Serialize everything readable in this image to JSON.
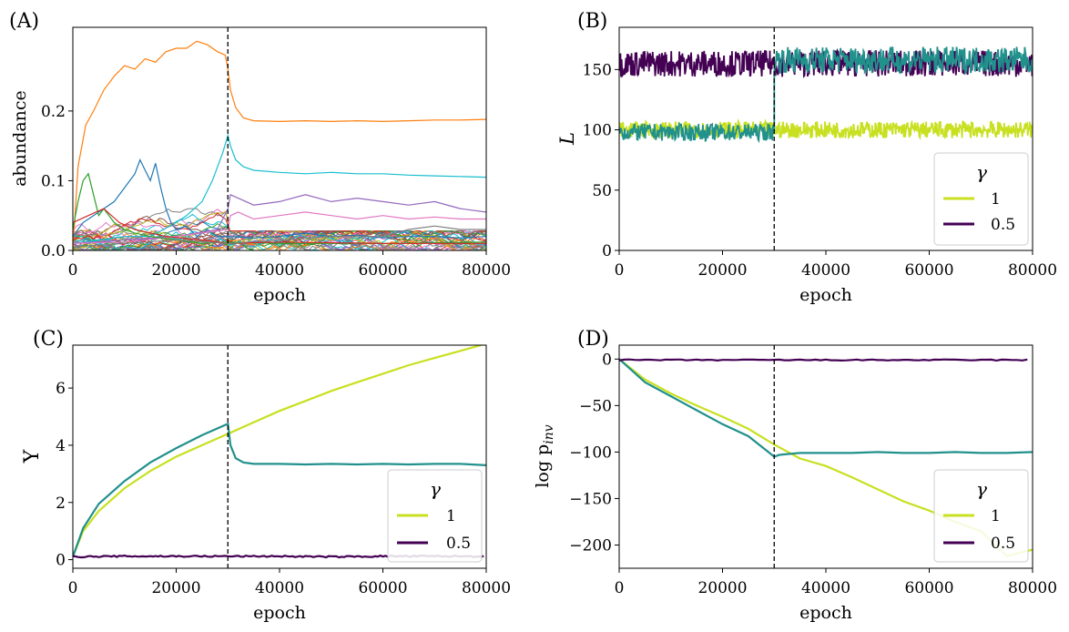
{
  "figure": {
    "panels": [
      {
        "label": "(A)",
        "xlabel": "epoch",
        "ylabel": "abundance"
      },
      {
        "label": "(B)",
        "xlabel": "epoch",
        "ylabel": "L",
        "legend_title": "γ"
      },
      {
        "label": "(C)",
        "xlabel": "epoch",
        "ylabel": "Υ",
        "legend_title": "γ"
      },
      {
        "label": "(D)",
        "xlabel": "epoch",
        "ylabel": "log p",
        "ylabel_sub": "inv",
        "legend_title": "γ"
      }
    ]
  },
  "colors": {
    "gamma_1": "#c8e020",
    "gamma_05": "#440154",
    "teal": "#21918c",
    "tab10": [
      "#1f77b4",
      "#ff7f0e",
      "#2ca02c",
      "#d62728",
      "#9467bd",
      "#8c564b",
      "#e377c2",
      "#7f7f7f",
      "#bcbd22",
      "#17becf"
    ]
  },
  "chart_data": [
    {
      "panel": "A",
      "type": "line",
      "xlabel": "epoch",
      "ylabel": "abundance",
      "xlim": [
        0,
        80000
      ],
      "ylim": [
        0,
        0.32
      ],
      "xticks": [
        0,
        20000,
        40000,
        60000,
        80000
      ],
      "yticks": [
        0.0,
        0.1,
        0.2
      ],
      "ytick_labels": [
        "0.0",
        "0.1",
        "0.2"
      ],
      "vline_x": 30000,
      "legend": "none",
      "series": [
        {
          "color": "#ff7f0e",
          "x": [
            0,
            1000,
            2500,
            4000,
            6000,
            8000,
            10000,
            12000,
            14000,
            16000,
            18000,
            20000,
            22000,
            24000,
            26000,
            28000,
            29500,
            30000,
            30500,
            31500,
            33000,
            35000,
            40000,
            45000,
            50000,
            55000,
            60000,
            65000,
            70000,
            75000,
            80000
          ],
          "y": [
            0,
            0.12,
            0.18,
            0.2,
            0.23,
            0.25,
            0.265,
            0.26,
            0.275,
            0.27,
            0.285,
            0.29,
            0.29,
            0.3,
            0.295,
            0.285,
            0.28,
            0.26,
            0.23,
            0.205,
            0.19,
            0.186,
            0.185,
            0.186,
            0.185,
            0.186,
            0.185,
            0.186,
            0.187,
            0.187,
            0.188
          ]
        },
        {
          "color": "#17becf",
          "x": [
            0,
            5000,
            10000,
            15000,
            20000,
            22000,
            25000,
            27000,
            29000,
            30000,
            30500,
            31500,
            33000,
            35000,
            40000,
            45000,
            50000,
            55000,
            60000,
            65000,
            70000,
            75000,
            80000
          ],
          "y": [
            0.01,
            0.015,
            0.02,
            0.02,
            0.04,
            0.05,
            0.07,
            0.1,
            0.14,
            0.165,
            0.15,
            0.13,
            0.12,
            0.115,
            0.112,
            0.11,
            0.112,
            0.11,
            0.11,
            0.108,
            0.107,
            0.106,
            0.105
          ]
        },
        {
          "color": "#1f77b4",
          "x": [
            0,
            2000,
            4000,
            6000,
            8000,
            10000,
            12000,
            13000,
            14000,
            15000,
            16000,
            17000,
            18000,
            19000,
            20000,
            22000,
            24000,
            26000,
            28000,
            30000,
            35000,
            40000,
            45000,
            50000,
            55000,
            60000,
            65000,
            70000,
            75000,
            80000
          ],
          "y": [
            0.02,
            0.04,
            0.05,
            0.06,
            0.07,
            0.09,
            0.11,
            0.13,
            0.115,
            0.1,
            0.125,
            0.09,
            0.06,
            0.04,
            0.03,
            0.035,
            0.02,
            0.03,
            0.02,
            0.02,
            0.018,
            0.02,
            0.025,
            0.02,
            0.022,
            0.018,
            0.02,
            0.02,
            0.018,
            0.02
          ]
        },
        {
          "color": "#9467bd",
          "x": [
            0,
            10000,
            20000,
            28000,
            30000,
            30500,
            32000,
            35000,
            40000,
            45000,
            50000,
            55000,
            60000,
            65000,
            70000,
            75000,
            80000
          ],
          "y": [
            0.01,
            0.015,
            0.02,
            0.03,
            0.06,
            0.08,
            0.075,
            0.065,
            0.07,
            0.08,
            0.07,
            0.075,
            0.07,
            0.065,
            0.07,
            0.06,
            0.055
          ]
        },
        {
          "color": "#e377c2",
          "x": [
            0,
            10000,
            20000,
            30000,
            30500,
            32000,
            35000,
            40000,
            45000,
            50000,
            55000,
            60000,
            65000,
            70000,
            75000,
            80000
          ],
          "y": [
            0.01,
            0.012,
            0.02,
            0.03,
            0.05,
            0.055,
            0.045,
            0.05,
            0.055,
            0.05,
            0.045,
            0.05,
            0.045,
            0.048,
            0.045,
            0.045
          ]
        },
        {
          "color": "#2ca02c",
          "x": [
            0,
            1000,
            2000,
            3000,
            4000,
            5000,
            6000,
            8000,
            10000,
            12000,
            15000,
            20000,
            25000,
            30000,
            40000,
            60000,
            80000
          ],
          "y": [
            0.03,
            0.07,
            0.1,
            0.11,
            0.08,
            0.05,
            0.06,
            0.04,
            0.03,
            0.025,
            0.02,
            0.015,
            0.01,
            0.012,
            0.01,
            0.01,
            0.012
          ]
        },
        {
          "color": "#d62728",
          "x": [
            0,
            3000,
            6000,
            9000,
            12000,
            18000,
            25000,
            30000,
            40000,
            60000,
            80000
          ],
          "y": [
            0.04,
            0.05,
            0.06,
            0.04,
            0.03,
            0.02,
            0.015,
            0.01,
            0.012,
            0.01,
            0.01
          ]
        },
        {
          "color": "#7f7f7f",
          "x": [
            0,
            10000,
            20000,
            30000,
            40000,
            50000,
            60000,
            65000,
            70000,
            75000,
            80000
          ],
          "y": [
            0.005,
            0.01,
            0.015,
            0.01,
            0.015,
            0.02,
            0.02,
            0.03,
            0.035,
            0.03,
            0.03
          ]
        }
      ]
    },
    {
      "panel": "B",
      "type": "line",
      "xlabel": "epoch",
      "ylabel": "L",
      "xlim": [
        0,
        80000
      ],
      "ylim": [
        0,
        185
      ],
      "xticks": [
        0,
        20000,
        40000,
        60000,
        80000
      ],
      "yticks": [
        0,
        50,
        100,
        150
      ],
      "vline_x": 30000,
      "legend": {
        "title": "γ",
        "position": "lower-right",
        "entries": [
          {
            "label": "1",
            "color": "#c8e020"
          },
          {
            "label": "0.5",
            "color": "#440154"
          }
        ]
      },
      "series": [
        {
          "legend_label": "0.5",
          "color": "#440154",
          "x_start": 0,
          "x_end": 80000,
          "mean": 155,
          "noise": 11
        },
        {
          "color": "#c8e020",
          "x_start": 0,
          "x_end": 80000,
          "mean": 100,
          "noise": 7
        },
        {
          "color": "#21918c",
          "segments": [
            {
              "x_start": 0,
              "x_end": 30000,
              "mean": 98,
              "noise": 7
            },
            {
              "x_start": 30000,
              "x_end": 80000,
              "mean": 158,
              "noise": 11
            }
          ]
        }
      ]
    },
    {
      "panel": "C",
      "type": "line",
      "xlabel": "epoch",
      "ylabel": "Υ",
      "xlim": [
        0,
        80000
      ],
      "ylim": [
        -0.3,
        7.5
      ],
      "xticks": [
        0,
        20000,
        40000,
        60000,
        80000
      ],
      "yticks": [
        0,
        2,
        4,
        6
      ],
      "vline_x": 30000,
      "legend": {
        "title": "γ",
        "position": "lower-right",
        "entries": [
          {
            "label": "1",
            "color": "#c8e020"
          },
          {
            "label": "0.5",
            "color": "#440154"
          }
        ]
      },
      "series": [
        {
          "color": "#c8e020",
          "x": [
            0,
            2000,
            5000,
            10000,
            15000,
            20000,
            25000,
            30000,
            35000,
            40000,
            45000,
            50000,
            55000,
            60000,
            65000,
            70000,
            75000,
            80000
          ],
          "y": [
            0.1,
            1.0,
            1.7,
            2.5,
            3.1,
            3.6,
            4.0,
            4.4,
            4.8,
            5.2,
            5.55,
            5.9,
            6.2,
            6.5,
            6.8,
            7.05,
            7.3,
            7.55
          ]
        },
        {
          "color": "#21918c",
          "x": [
            0,
            2000,
            5000,
            10000,
            15000,
            20000,
            25000,
            30000,
            30500,
            31500,
            33000,
            35000,
            40000,
            45000,
            50000,
            55000,
            60000,
            65000,
            70000,
            75000,
            80000
          ],
          "y": [
            0.1,
            1.1,
            1.95,
            2.75,
            3.4,
            3.9,
            4.35,
            4.75,
            4.0,
            3.55,
            3.4,
            3.35,
            3.35,
            3.33,
            3.35,
            3.33,
            3.35,
            3.33,
            3.35,
            3.35,
            3.3
          ]
        },
        {
          "color": "#440154",
          "x": [
            0,
            10000,
            20000,
            30000,
            40000,
            50000,
            60000,
            70000,
            80000
          ],
          "y": [
            0.1,
            0.12,
            0.12,
            0.12,
            0.12,
            0.1,
            0.12,
            0.12,
            0.12
          ]
        }
      ]
    },
    {
      "panel": "D",
      "type": "line",
      "xlabel": "epoch",
      "ylabel": "log p_inv",
      "xlim": [
        0,
        80000
      ],
      "ylim": [
        -225,
        15
      ],
      "xticks": [
        0,
        20000,
        40000,
        60000,
        80000
      ],
      "yticks": [
        0,
        -50,
        -100,
        -150,
        -200
      ],
      "ytick_labels": [
        "0",
        "−50",
        "−100",
        "−150",
        "−200"
      ],
      "vline_x": 30000,
      "legend": {
        "title": "γ",
        "position": "lower-right",
        "entries": [
          {
            "label": "1",
            "color": "#c8e020"
          },
          {
            "label": "0.5",
            "color": "#440154"
          }
        ]
      },
      "series": [
        {
          "color": "#c8e020",
          "x": [
            0,
            5000,
            10000,
            15000,
            20000,
            25000,
            30000,
            35000,
            40000,
            45000,
            50000,
            55000,
            60000,
            65000,
            70000,
            75000,
            80000
          ],
          "y": [
            0,
            -22,
            -37,
            -50,
            -62,
            -75,
            -92,
            -107,
            -115,
            -127,
            -140,
            -153,
            -163,
            -175,
            -185,
            -212,
            -205
          ]
        },
        {
          "color": "#21918c",
          "x": [
            0,
            3000,
            5000,
            10000,
            15000,
            20000,
            25000,
            30000,
            31000,
            33000,
            35000,
            40000,
            45000,
            50000,
            55000,
            60000,
            65000,
            70000,
            75000,
            80000
          ],
          "y": [
            0,
            -15,
            -25,
            -40,
            -55,
            -70,
            -83,
            -105,
            -103,
            -102,
            -101,
            -101,
            -101,
            -100,
            -101,
            -101,
            -100,
            -101,
            -101,
            -100
          ]
        },
        {
          "color": "#440154",
          "x": [
            0,
            20000,
            40000,
            60000,
            80000
          ],
          "y": [
            -1,
            -1,
            -1,
            -1,
            -1
          ]
        }
      ]
    }
  ]
}
